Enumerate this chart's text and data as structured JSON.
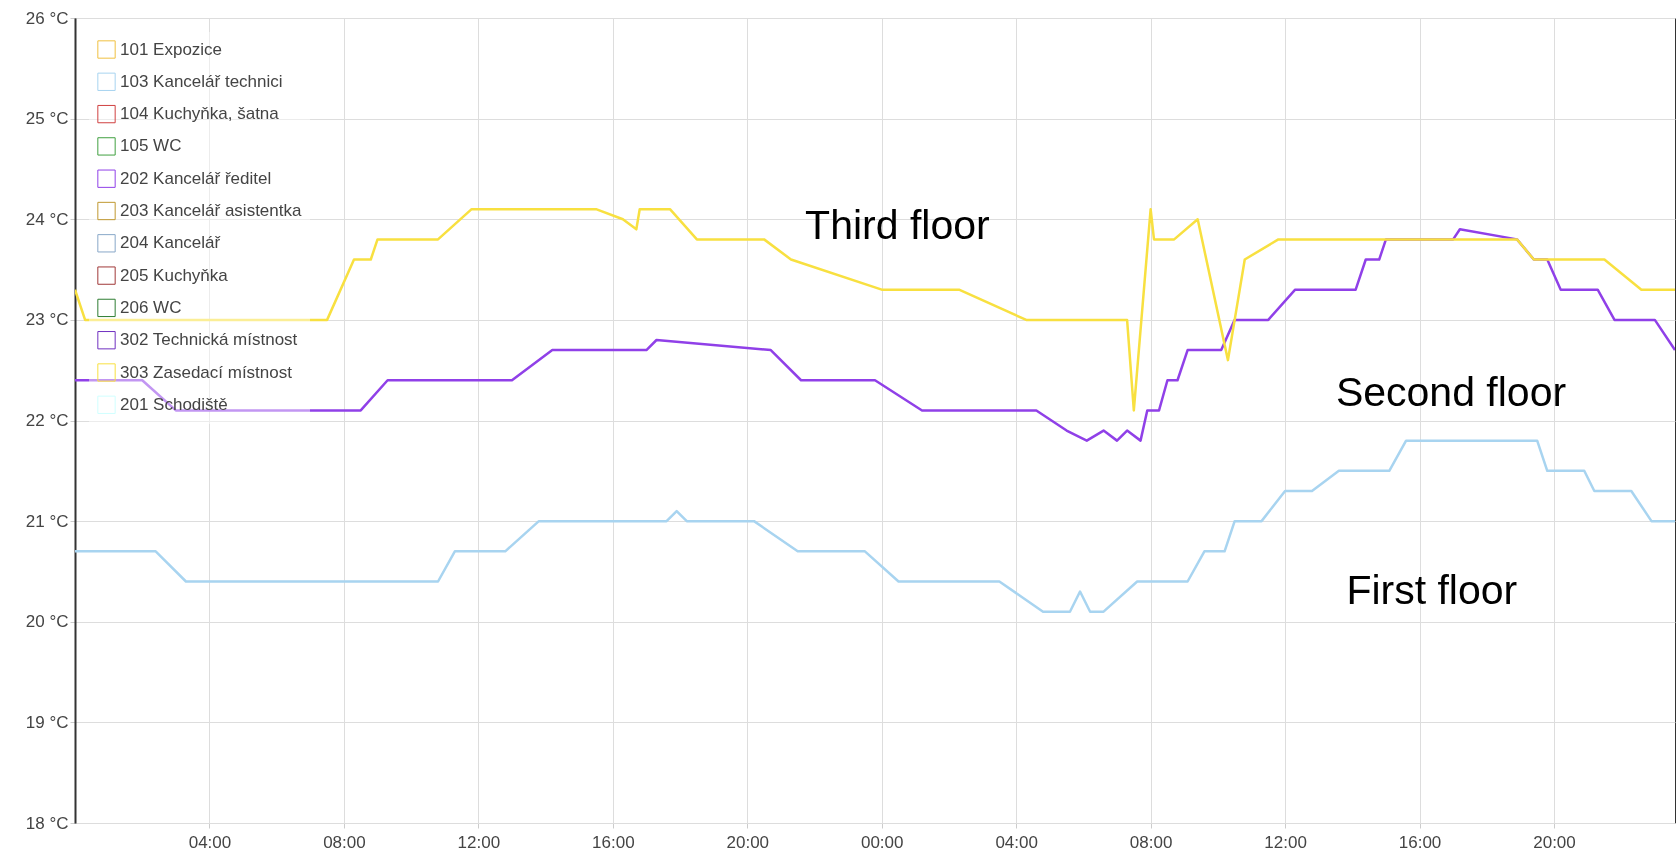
{
  "chart_data": {
    "type": "line",
    "annotations": [
      "Third floor",
      "Second floor",
      "First floor"
    ],
    "xlim": [
      "--01-01T00:00",
      "--01-02T23:36"
    ],
    "xticks": [
      {
        "value": "--01-01T04:00",
        "label": "04:00"
      },
      {
        "value": "--01-01T08:00",
        "label": "08:00"
      },
      {
        "value": "--01-01T12:00",
        "label": "12:00"
      },
      {
        "value": "--01-01T16:00",
        "label": "16:00"
      },
      {
        "value": "--01-01T20:00",
        "label": "20:00"
      },
      {
        "value": "--01-02T00:00",
        "label": "00:00"
      },
      {
        "value": "--01-02T04:00",
        "label": "04:00"
      },
      {
        "value": "--01-02T08:00",
        "label": "08:00"
      },
      {
        "value": "--01-02T12:00",
        "label": "12:00"
      },
      {
        "value": "--01-02T16:00",
        "label": "16:00"
      },
      {
        "value": "--01-02T20:00",
        "label": "20:00"
      }
    ],
    "ylim": [
      18,
      26
    ],
    "yticks": [
      {
        "value": 18,
        "label": "18 °C"
      },
      {
        "value": 19,
        "label": "19 °C"
      },
      {
        "value": 20,
        "label": "20 °C"
      },
      {
        "value": 21,
        "label": "21 °C"
      },
      {
        "value": 22,
        "label": "22 °C"
      },
      {
        "value": 23,
        "label": "23 °C"
      },
      {
        "value": 24,
        "label": "24 °C"
      },
      {
        "value": 25,
        "label": "25 °C"
      },
      {
        "value": 26,
        "label": "26 °C"
      }
    ],
    "grid": true,
    "legend": "top left",
    "series": [
      {
        "name": "101 Expozice",
        "color": "#f0c040"
      },
      {
        "name": "103 Kancelář technici",
        "color": "#a8d4f0",
        "x": [
          "--01-01T00:00",
          "--01-01T02:24",
          "--01-01T03:18",
          "--01-01T10:48",
          "--01-01T11:18",
          "--01-01T12:48",
          "--01-01T13:48",
          "--01-01T17:36",
          "--01-01T17:54",
          "--01-01T18:12",
          "--01-01T20:12",
          "--01-01T21:30",
          "--01-01T23:30",
          "--01-02T00:30",
          "--01-02T03:30",
          "--01-02T04:48",
          "--01-02T05:36",
          "--01-02T05:54",
          "--01-02T06:12",
          "--01-02T06:36",
          "--01-02T07:36",
          "--01-02T09:06",
          "--01-02T09:36",
          "--01-02T10:12",
          "--01-02T10:30",
          "--01-02T11:18",
          "--01-02T12:00",
          "--01-02T12:48",
          "--01-02T13:36",
          "--01-02T15:06",
          "--01-02T15:36",
          "--01-02T19:30",
          "--01-02T19:48",
          "--01-02T20:54",
          "--01-02T21:12",
          "--01-02T22:18",
          "--01-02T22:54",
          "--01-02T23:36"
        ],
        "values": [
          20.7,
          20.7,
          20.4,
          20.4,
          20.7,
          20.7,
          21.0,
          21.0,
          21.1,
          21.0,
          21.0,
          20.7,
          20.7,
          20.4,
          20.4,
          20.1,
          20.1,
          20.3,
          20.1,
          20.1,
          20.4,
          20.4,
          20.7,
          20.7,
          21.0,
          21.0,
          21.3,
          21.3,
          21.5,
          21.5,
          21.8,
          21.8,
          21.5,
          21.5,
          21.3,
          21.3,
          21.0,
          21.0
        ]
      },
      {
        "name": "104 Kuchyňka, šatna",
        "color": "#d04040"
      },
      {
        "name": "105 WC",
        "color": "#40a040"
      },
      {
        "name": "202 Kancelář ředitel",
        "color": "#9040e8",
        "x": [
          "--01-01T00:00",
          "--01-01T02:00",
          "--01-01T03:00",
          "--01-01T08:30",
          "--01-01T09:18",
          "--01-01T13:00",
          "--01-01T14:12",
          "--01-01T17:00",
          "--01-01T17:18",
          "--01-01T20:42",
          "--01-01T21:36",
          "--01-01T23:48",
          "--01-02T01:12",
          "--01-02T04:36",
          "--01-02T05:30",
          "--01-02T06:06",
          "--01-02T06:36",
          "--01-02T07:00",
          "--01-02T07:18",
          "--01-02T07:42",
          "--01-02T07:54",
          "--01-02T08:15",
          "--01-02T08:30",
          "--01-02T08:48",
          "--01-02T09:06",
          "--01-02T10:06",
          "--01-02T10:30",
          "--01-02T11:30",
          "--01-02T12:18",
          "--01-02T14:06",
          "--01-02T14:24",
          "--01-02T14:48",
          "--01-02T15:00",
          "--01-02T17:00",
          "--01-02T17:12",
          "--01-02T18:54",
          "--01-02T19:24",
          "--01-02T19:48",
          "--01-02T20:12",
          "--01-02T21:18",
          "--01-02T21:48",
          "--01-02T23:00",
          "--01-02T23:36"
        ],
        "values": [
          22.4,
          22.4,
          22.1,
          22.1,
          22.4,
          22.4,
          22.7,
          22.7,
          22.8,
          22.7,
          22.4,
          22.4,
          22.1,
          22.1,
          21.9,
          21.8,
          21.9,
          21.8,
          21.9,
          21.8,
          22.1,
          22.1,
          22.4,
          22.4,
          22.7,
          22.7,
          23.0,
          23.0,
          23.3,
          23.3,
          23.6,
          23.6,
          23.8,
          23.8,
          23.9,
          23.8,
          23.6,
          23.6,
          23.3,
          23.3,
          23.0,
          23.0,
          22.7
        ]
      },
      {
        "name": "203 Kancelář asistentka",
        "color": "#c09830"
      },
      {
        "name": "204 Kancelář",
        "color": "#88a8c8"
      },
      {
        "name": "205 Kuchyňka",
        "color": "#a03838"
      },
      {
        "name": "206 WC",
        "color": "#2e7d32"
      },
      {
        "name": "302 Technická místnost",
        "color": "#7030c0"
      },
      {
        "name": "303 Zasedací místnost",
        "color": "#f8e040",
        "x": [
          "--01-01T00:00",
          "--01-01T00:18",
          "--01-01T07:30",
          "--01-01T08:18",
          "--01-01T08:48",
          "--01-01T09:00",
          "--01-01T10:48",
          "--01-01T11:48",
          "--01-01T15:30",
          "--01-01T16:18",
          "--01-01T16:42",
          "--01-01T16:48",
          "--01-01T17:42",
          "--01-01T18:30",
          "--01-01T20:30",
          "--01-01T21:18",
          "--01-02T00:00",
          "--01-02T02:18",
          "--01-02T04:18",
          "--01-02T07:18",
          "--01-02T07:30",
          "--01-02T08:00",
          "--01-02T08:06",
          "--01-02T08:42",
          "--01-02T09:24",
          "--01-02T10:18",
          "--01-02T10:48",
          "--01-02T11:48",
          "--01-02T18:54",
          "--01-02T19:24",
          "--01-02T21:30",
          "--01-02T22:36",
          "--01-02T23:36"
        ],
        "values": [
          23.3,
          23.0,
          23.0,
          23.6,
          23.6,
          23.8,
          23.8,
          24.1,
          24.1,
          24.0,
          23.9,
          24.1,
          24.1,
          23.8,
          23.8,
          23.6,
          23.3,
          23.3,
          23.0,
          23.0,
          22.1,
          24.1,
          23.8,
          23.8,
          24.0,
          22.6,
          23.6,
          23.8,
          23.8,
          23.6,
          23.6,
          23.3,
          23.3
        ]
      },
      {
        "name": "201 Schodiště",
        "color": "#d0ffff"
      }
    ]
  }
}
